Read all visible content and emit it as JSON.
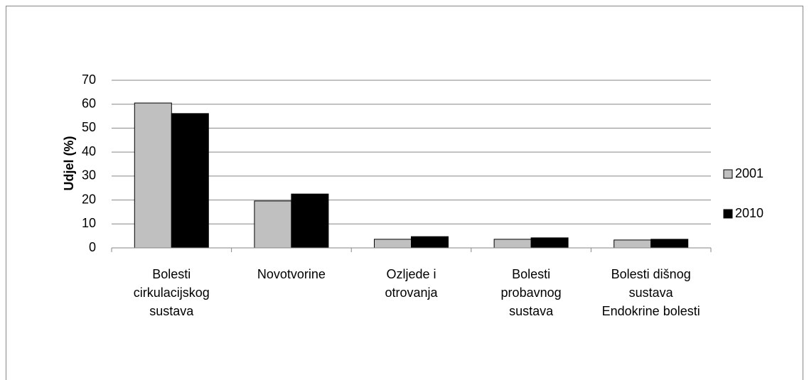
{
  "chart_data": {
    "type": "bar",
    "y_label": "Udjel (%)",
    "categories": [
      "Bolesti cirkulacijskog sustava",
      "Novotvorine",
      "Ozljede i otrovanja",
      "Bolesti probavnog sustava",
      "Bolesti dišnog sustava Endokrine bolesti"
    ],
    "series": [
      {
        "name": "2001",
        "color": "#c0c0c0",
        "values": [
          60.5,
          19.6,
          3.6,
          3.6,
          3.3
        ]
      },
      {
        "name": "2010",
        "color": "#000000",
        "values": [
          56.1,
          22.5,
          4.7,
          4.2,
          3.6
        ]
      }
    ],
    "ylim": [
      0,
      70
    ],
    "yticks": [
      0,
      10,
      20,
      30,
      40,
      50,
      60,
      70
    ],
    "grid": true,
    "legend": "right"
  }
}
